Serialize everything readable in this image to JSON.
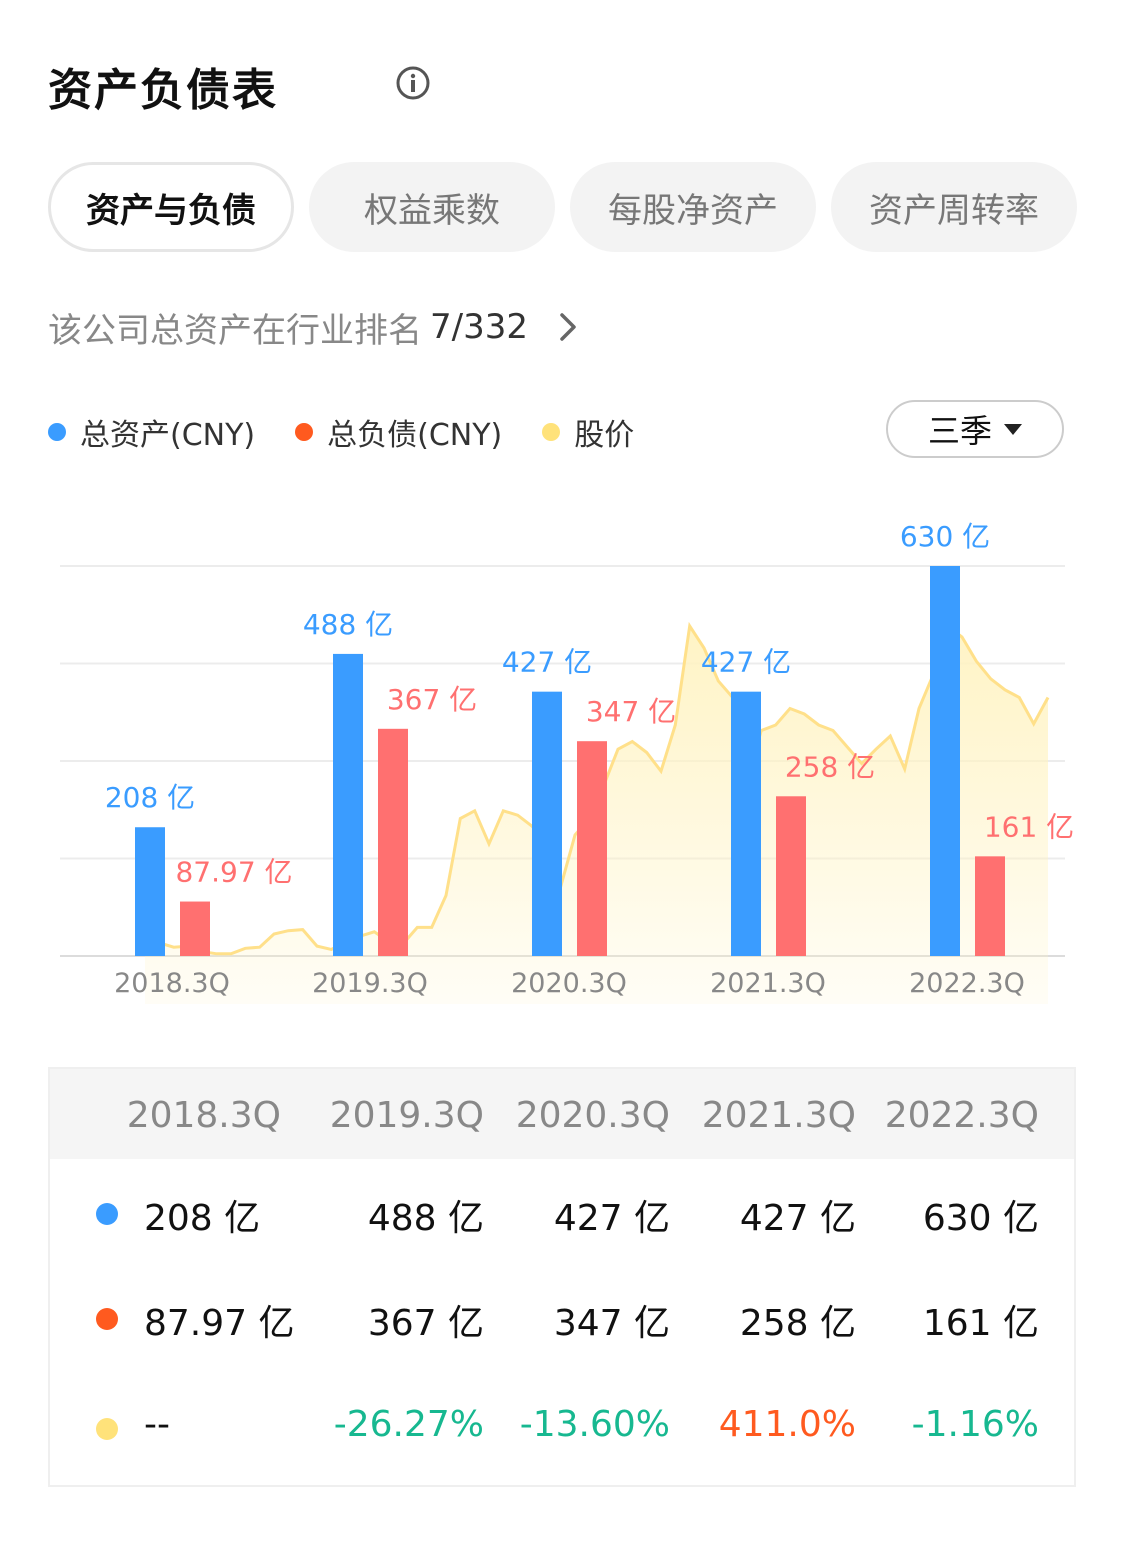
{
  "header": {
    "title": "资产负债表"
  },
  "tabs": [
    "资产与负债",
    "权益乘数",
    "每股净资产",
    "资产周转率"
  ],
  "rank": {
    "label": "该公司总资产在行业排名",
    "value": "7/332"
  },
  "legend": [
    {
      "label": "总资产(CNY)",
      "color": "#3a9cff"
    },
    {
      "label": "总负债(CNY)",
      "color": "#ff5a1f"
    },
    {
      "label": "股价",
      "color": "#ffe27a"
    }
  ],
  "period": {
    "label": "三季"
  },
  "colors": {
    "assets": "#3a9cff",
    "liabilities": "#ff7070",
    "price_line": "#ffe08a",
    "price_fill": "#fff3c2",
    "positive": "#ff5a1f",
    "negative": "#17b890"
  },
  "chart_data": {
    "type": "bar",
    "categories": [
      "2018.3Q",
      "2019.3Q",
      "2020.3Q",
      "2021.3Q",
      "2022.3Q"
    ],
    "series": [
      {
        "name": "总资产(CNY)",
        "values": [
          208,
          488,
          427,
          427,
          630
        ],
        "labels": [
          "208 亿",
          "488 亿",
          "427 亿",
          "427 亿",
          "630 亿"
        ]
      },
      {
        "name": "总负债(CNY)",
        "values": [
          87.97,
          367,
          347,
          258,
          161
        ],
        "labels": [
          "87.97 亿",
          "367 亿",
          "347 亿",
          "258 亿",
          "161 亿"
        ]
      }
    ],
    "price_line": {
      "name": "股价",
      "values": [
        19,
        12,
        8,
        9,
        4,
        2,
        2,
        7,
        8,
        20,
        23,
        24,
        9,
        6,
        12,
        18,
        22,
        13,
        11,
        26,
        26,
        55,
        125,
        132,
        102,
        132,
        128,
        118,
        103,
        63,
        110,
        125,
        155,
        188,
        195,
        185,
        168,
        210,
        300,
        280,
        250,
        235,
        160,
        205,
        210,
        225,
        220,
        210,
        205,
        190,
        175,
        188,
        200,
        170,
        225,
        256,
        300,
        290,
        268,
        252,
        242,
        235,
        211,
        235
      ]
    },
    "ylim": [
      0,
      630
    ],
    "grid": true,
    "legend_position": "top-left"
  },
  "table": {
    "headers": [
      "2018.3Q",
      "2019.3Q",
      "2020.3Q",
      "2021.3Q",
      "2022.3Q"
    ],
    "rows": [
      {
        "color": "#3a9cff",
        "cells": [
          "208 亿",
          "488 亿",
          "427 亿",
          "427 亿",
          "630 亿"
        ]
      },
      {
        "color": "#ff5a1f",
        "cells": [
          "87.97 亿",
          "367 亿",
          "347 亿",
          "258 亿",
          "161 亿"
        ]
      },
      {
        "color": "#ffe27a",
        "cells": [
          "--",
          "-26.27%",
          "-13.60%",
          "411.0%",
          "-1.16%"
        ],
        "tones": [
          "neutral",
          "negative",
          "negative",
          "positive",
          "negative"
        ]
      }
    ]
  }
}
